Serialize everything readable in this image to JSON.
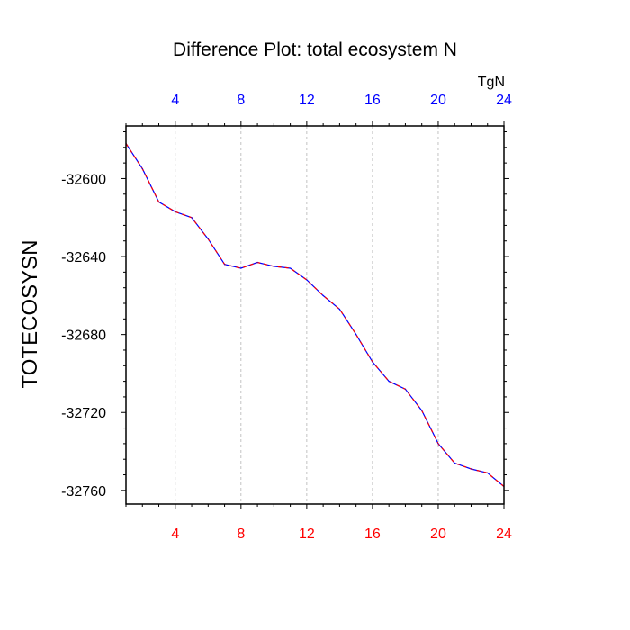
{
  "chart_data": {
    "type": "line",
    "title": "Difference Plot: total ecosystem N",
    "units_label": "TgN",
    "ylabel": "TOTECOSYSN",
    "xlabel": "",
    "xlim": [
      1,
      24
    ],
    "ylim": [
      -32767,
      -32573
    ],
    "x_ticks": [
      4,
      8,
      12,
      16,
      20,
      24
    ],
    "x_tick_labels_top": [
      "4",
      "8",
      "12",
      "16",
      "20",
      "24"
    ],
    "x_tick_labels_bottom": [
      "4",
      "8",
      "12",
      "16",
      "20",
      "24"
    ],
    "y_ticks": [
      -32600,
      -32640,
      -32680,
      -32720,
      -32760
    ],
    "y_tick_labels": [
      "-32600",
      "-32640",
      "-32680",
      "-32720",
      "-32760"
    ],
    "grid": "vertical dashed at major x ticks",
    "series": [
      {
        "name": "TOTECOSYSN difference",
        "color_a": "#0000ff",
        "color_b": "#ff0000",
        "style": "dashed two-color",
        "x": [
          1,
          2,
          3,
          4,
          5,
          6,
          7,
          8,
          9,
          10,
          11,
          12,
          13,
          14,
          15,
          16,
          17,
          18,
          19,
          20,
          21,
          22,
          23,
          24
        ],
        "values": [
          -32582,
          -32595,
          -32612,
          -32617,
          -32620,
          -32631,
          -32644,
          -32646,
          -32643,
          -32645,
          -32646,
          -32652,
          -32660,
          -32667,
          -32680,
          -32694,
          -32704,
          -32708,
          -32719,
          -32736,
          -32746,
          -32749,
          -32751,
          -32758
        ]
      }
    ]
  },
  "colors": {
    "axis": "#000000",
    "grid": "#b4b4b4",
    "top_tick_labels": "#0000ff",
    "bottom_tick_labels": "#ff0000"
  }
}
